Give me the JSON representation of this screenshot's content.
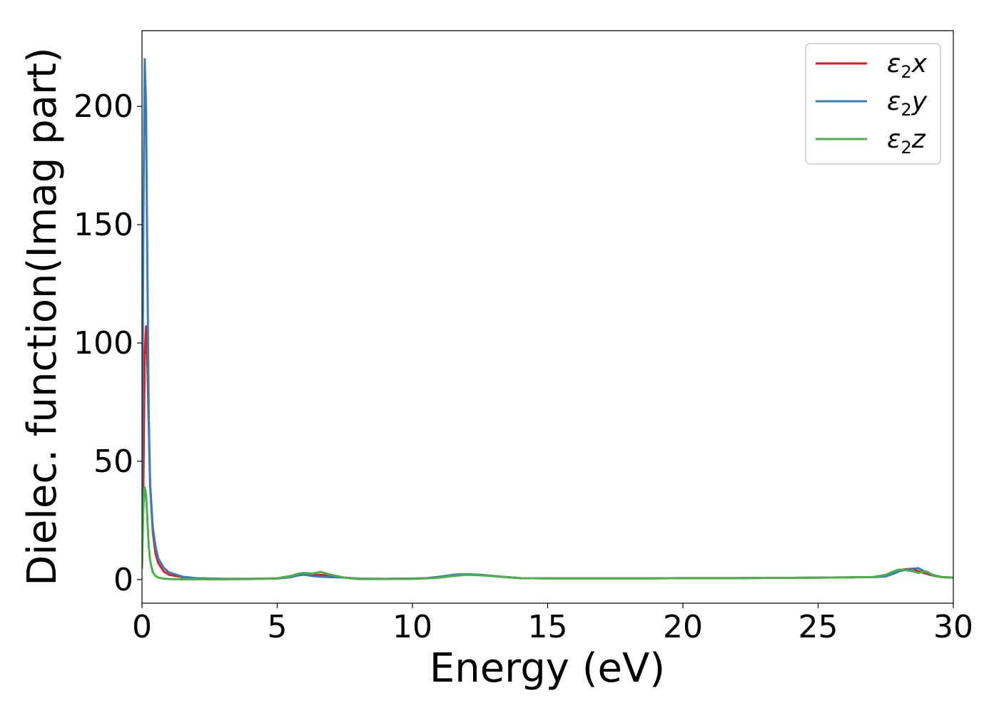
{
  "chart_data": {
    "type": "line",
    "xlabel": "Energy (eV)",
    "ylabel": "Dielec. function(Imag part)",
    "xlim": [
      0,
      30
    ],
    "ylim": [
      -10,
      232
    ],
    "xticks": [
      0,
      5,
      10,
      15,
      20,
      25,
      30
    ],
    "yticks": [
      0,
      50,
      100,
      150,
      200
    ],
    "grid": false,
    "legend_position": "top-right",
    "series": [
      {
        "name": "ε2x",
        "legend": {
          "symbol": "ε",
          "sub": "2",
          "suffix": "x"
        },
        "color": "#e41a1c",
        "x": [
          0,
          0.05,
          0.1,
          0.15,
          0.2,
          0.25,
          0.3,
          0.4,
          0.5,
          0.6,
          0.8,
          1.0,
          1.5,
          2.0,
          3.0,
          4.0,
          5.0,
          5.5,
          5.8,
          6.0,
          6.3,
          6.6,
          7.0,
          7.5,
          8.0,
          9.0,
          10.0,
          10.5,
          11.0,
          11.5,
          12.0,
          12.5,
          13.0,
          13.5,
          14.0,
          15.0,
          16.0,
          17.0,
          18.0,
          19.0,
          20.0,
          21.0,
          22.0,
          23.0,
          24.0,
          25.0,
          26.0,
          26.5,
          27.0,
          27.5,
          27.8,
          28.0,
          28.2,
          28.5,
          28.7,
          29.0,
          29.3,
          29.6,
          30.0
        ],
        "y": [
          5,
          40,
          95,
          107,
          90,
          65,
          40,
          20,
          11,
          7,
          3.5,
          2,
          1,
          0.5,
          0.3,
          0.3,
          0.5,
          1.5,
          2.5,
          2.2,
          1.8,
          2.0,
          1.5,
          0.8,
          0.3,
          0.3,
          0.4,
          0.5,
          1.0,
          2.0,
          2.2,
          2.0,
          1.5,
          1.0,
          0.6,
          0.5,
          0.5,
          0.5,
          0.5,
          0.5,
          0.6,
          0.6,
          0.6,
          0.7,
          0.7,
          0.8,
          0.9,
          1.0,
          1.0,
          1.5,
          3.0,
          4.0,
          4.3,
          4.6,
          3.5,
          2.5,
          1.5,
          1.0,
          0.8
        ]
      },
      {
        "name": "ε2y",
        "legend": {
          "symbol": "ε",
          "sub": "2",
          "suffix": "y"
        },
        "color": "#377eb8",
        "x": [
          0,
          0.05,
          0.1,
          0.15,
          0.2,
          0.25,
          0.3,
          0.4,
          0.5,
          0.6,
          0.8,
          1.0,
          1.5,
          2.0,
          3.0,
          4.0,
          5.0,
          5.5,
          5.8,
          6.0,
          6.3,
          6.6,
          7.0,
          7.5,
          8.0,
          9.0,
          10.0,
          10.5,
          11.0,
          11.5,
          12.0,
          12.5,
          13.0,
          13.5,
          14.0,
          15.0,
          16.0,
          17.0,
          18.0,
          19.0,
          20.0,
          21.0,
          22.0,
          23.0,
          24.0,
          25.0,
          26.0,
          26.5,
          27.0,
          27.5,
          27.8,
          28.0,
          28.2,
          28.5,
          28.7,
          29.0,
          29.3,
          29.6,
          30.0
        ],
        "y": [
          20,
          150,
          220,
          200,
          130,
          70,
          40,
          22,
          14,
          9,
          5,
          3,
          1.2,
          0.6,
          0.3,
          0.3,
          0.4,
          1.0,
          1.8,
          2.0,
          1.5,
          1.2,
          1.0,
          0.8,
          0.4,
          0.3,
          0.4,
          0.6,
          1.2,
          2.0,
          2.3,
          2.0,
          1.5,
          1.0,
          0.6,
          0.5,
          0.5,
          0.5,
          0.5,
          0.5,
          0.6,
          0.6,
          0.6,
          0.7,
          0.7,
          0.8,
          0.9,
          1.0,
          1.0,
          1.3,
          2.5,
          3.5,
          4.0,
          4.5,
          4.8,
          3.0,
          1.8,
          1.0,
          0.8
        ]
      },
      {
        "name": "ε2z",
        "legend": {
          "symbol": "ε",
          "sub": "2",
          "suffix": "z"
        },
        "color": "#4daf4a",
        "x": [
          0,
          0.05,
          0.1,
          0.15,
          0.2,
          0.25,
          0.3,
          0.4,
          0.5,
          0.6,
          0.8,
          1.0,
          1.5,
          2.0,
          3.0,
          4.0,
          5.0,
          5.5,
          5.8,
          6.0,
          6.3,
          6.6,
          7.0,
          7.5,
          8.0,
          9.0,
          10.0,
          10.5,
          11.0,
          11.5,
          12.0,
          12.5,
          13.0,
          13.5,
          14.0,
          15.0,
          16.0,
          17.0,
          18.0,
          19.0,
          20.0,
          21.0,
          22.0,
          23.0,
          24.0,
          25.0,
          26.0,
          26.5,
          27.0,
          27.5,
          27.8,
          28.0,
          28.2,
          28.5,
          28.7,
          29.0,
          29.3,
          29.6,
          30.0
        ],
        "y": [
          5,
          30,
          39,
          36,
          25,
          14,
          8,
          3,
          1.5,
          0.8,
          0.4,
          0.2,
          0.1,
          0.1,
          0.1,
          0.2,
          0.5,
          1.5,
          2.5,
          2.8,
          2.5,
          3.2,
          2.0,
          0.8,
          0.2,
          0.2,
          0.3,
          0.5,
          0.8,
          1.5,
          2.0,
          1.8,
          1.4,
          1.0,
          0.6,
          0.5,
          0.5,
          0.5,
          0.5,
          0.5,
          0.6,
          0.6,
          0.6,
          0.7,
          0.7,
          0.8,
          0.9,
          1.0,
          1.0,
          2.0,
          3.5,
          4.2,
          4.0,
          3.5,
          2.8,
          3.5,
          1.5,
          1.0,
          0.8
        ]
      }
    ]
  }
}
